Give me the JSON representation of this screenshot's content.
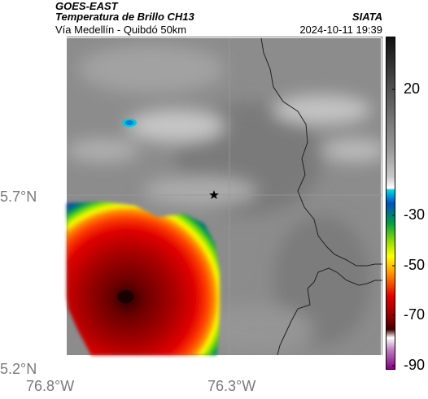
{
  "header": {
    "satellite": "GOES-EAST",
    "product": "Temperatura de Brillo CH13",
    "region": "Vía Medellín - Quibdó 50km",
    "source": "SIATA",
    "timestamp": "2024-10-11 19:39"
  },
  "map": {
    "lat_labels": [
      "5.7°N",
      "5.2°N"
    ],
    "lon_labels": [
      "76.8°W",
      "76.3°W"
    ],
    "marker_icon": "star-icon"
  },
  "colorbar": {
    "ticks": [
      "20",
      "-30",
      "-50",
      "-70",
      "-90"
    ],
    "stops": [
      "#111111",
      "#3a3a3a",
      "#6a6a6a",
      "#9a9a9a",
      "#c8c8c8",
      "#ffffff",
      "#00d8e8",
      "#0050c0",
      "#00a040",
      "#a0e000",
      "#ffff00",
      "#ff8000",
      "#e00000",
      "#900000",
      "#400000",
      "#ffffff",
      "#c080c0",
      "#800080"
    ]
  }
}
